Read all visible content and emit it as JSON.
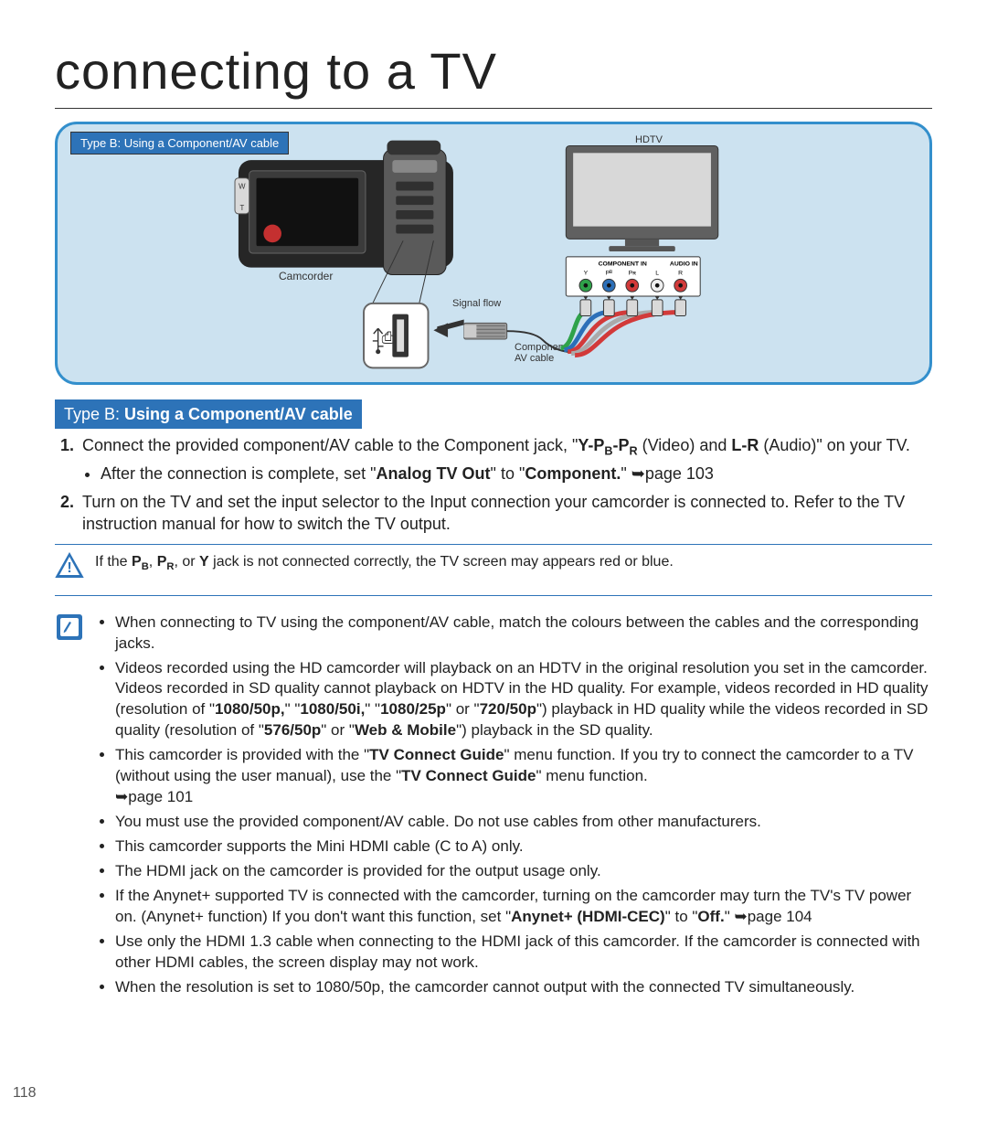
{
  "page": {
    "title": "connecting to a TV",
    "number": "118"
  },
  "diagram": {
    "badge": "Type B: Using a Component/AV cable",
    "hdtv": "HDTV",
    "camcorder": "Camcorder",
    "signalflow": "Signal flow",
    "avcable": "Component/\nAV cable",
    "panel_title": "COMPONENT IN",
    "panel_audio": "AUDIO IN",
    "ports": {
      "labels": [
        "Y",
        "Pᴮ",
        "Pʀ",
        "L",
        "R"
      ],
      "colors": [
        "#2fa24a",
        "#2b6fb8",
        "#d23a3a",
        "#efefef",
        "#d23a3a"
      ]
    }
  },
  "section": {
    "badge_prefix": "Type B: ",
    "badge_main": "Using a Component/AV cable"
  },
  "steps": {
    "s1a": "Connect the provided component/AV cable to the Component jack, \"",
    "s1b": " (Video) and ",
    "s1c": " (Audio)\" on your TV.",
    "s1_ypbpr_y": "Y-P",
    "s1_ypbpr_b": "B",
    "s1_ypbpr_dash": "-P",
    "s1_ypbpr_r": "R",
    "s1_lr": "L-R",
    "s1_bullet_a": "After the connection is complete, set \"",
    "s1_bullet_b": "Analog TV Out",
    "s1_bullet_c": "\" to \"",
    "s1_bullet_d": "Component.",
    "s1_bullet_e": "\" ",
    "s1_bullet_pageref": "page 103",
    "s2": "Turn on the TV and set the input selector to the Input connection your camcorder is connected to. Refer to the TV instruction manual for how to switch the TV output."
  },
  "warning": {
    "a": "If the ",
    "pb": "P",
    "pb_sub": "B",
    "sep1": ", ",
    "pr": "P",
    "pr_sub": "R",
    "sep2": ", or ",
    "y": "Y",
    "b": " jack is not connected correctly, the TV screen may appears red or blue."
  },
  "notes": {
    "n1": "When connecting to TV using the component/AV cable, match the colours between the cables and the corresponding jacks.",
    "n2a": "Videos recorded using the HD camcorder will playback on an HDTV in the original resolution you set in the camcorder. Videos recorded in SD quality cannot playback on HDTV in the HD quality. For example, videos recorded in HD quality (resolution of \"",
    "n2_b1": "1080/50p,",
    "n2_m1": "\" \"",
    "n2_b2": "1080/50i,",
    "n2_m2": "\" \"",
    "n2_b3": "1080/25p",
    "n2_m3": "\" or \"",
    "n2_b4": "720/50p",
    "n2_m4": "\") playback in HD quality while the videos recorded in SD quality (resolution of \"",
    "n2_b5": "576/50p",
    "n2_m5": "\" or \"",
    "n2_b6": "Web & Mobile",
    "n2_m6": "\") playback in the SD quality.",
    "n3a": "This camcorder is provided with the \"",
    "n3b": "TV Connect Guide",
    "n3c": "\" menu function. If you try to connect the camcorder to a TV (without using the user manual), use the \"",
    "n3d": "TV Connect Guide",
    "n3e": "\" menu function. ",
    "n3_pageref": "page 101",
    "n4": "You must use the provided component/AV cable. Do not use cables from other manufacturers.",
    "n5": "This camcorder supports the Mini HDMI cable (C to A) only.",
    "n6": "The HDMI jack on the camcorder is provided for the output usage only.",
    "n7a": "If the Anynet+ supported TV is connected with the camcorder, turning on the camcorder may turn the TV's TV power on. (Anynet+ function) If you don't want this function, set \"",
    "n7b": "Anynet+ (HDMI-CEC)",
    "n7c": "\" to \"",
    "n7d": "Off.",
    "n7e": "\" ",
    "n7_pageref": "page 104",
    "n8": "Use only the HDMI 1.3 cable when connecting to the HDMI jack of this camcorder. If the camcorder is connected with other HDMI cables, the screen display may not work.",
    "n9": "When the resolution is set to 1080/50p, the camcorder cannot output with the connected TV simultaneously."
  },
  "glyph": {
    "arrow": "➥"
  }
}
